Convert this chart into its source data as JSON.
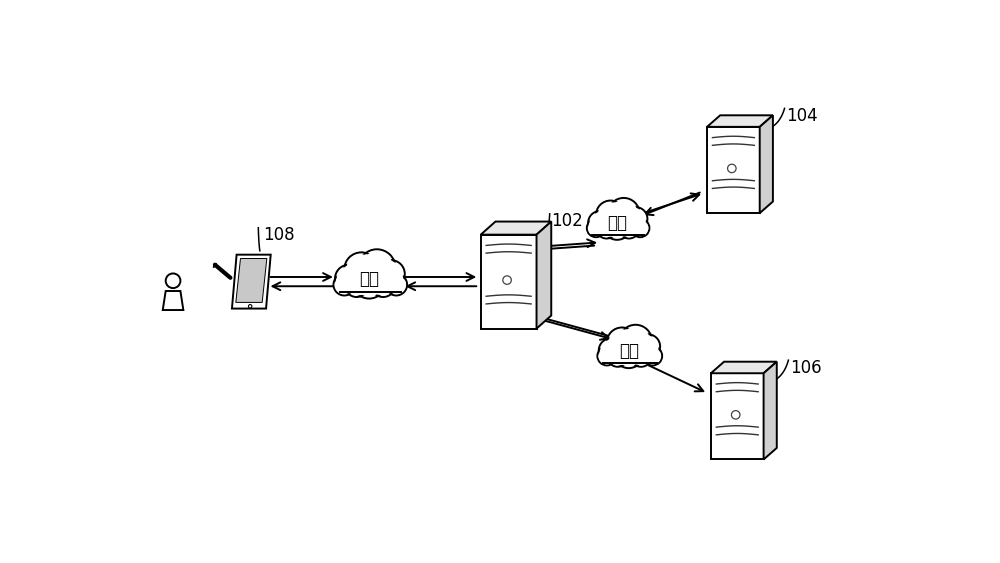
{
  "background_color": "#ffffff",
  "label_104": "104",
  "label_102": "102",
  "label_106": "106",
  "label_108": "108",
  "cloud_text": "网络",
  "figsize": [
    10.0,
    5.63
  ],
  "dpi": 100,
  "server_face_color": "#ffffff",
  "server_top_color": "#e8e8e8",
  "server_side_color": "#d0d0d0",
  "server_edge": "#000000",
  "cloud_color": "#ffffff",
  "cloud_edge": "#000000",
  "arrow_color": "#000000",
  "text_color": "#000000",
  "label_fontsize": 12,
  "cloud_fontsize": 12,
  "lw": 1.4,
  "lw_thin": 0.9
}
